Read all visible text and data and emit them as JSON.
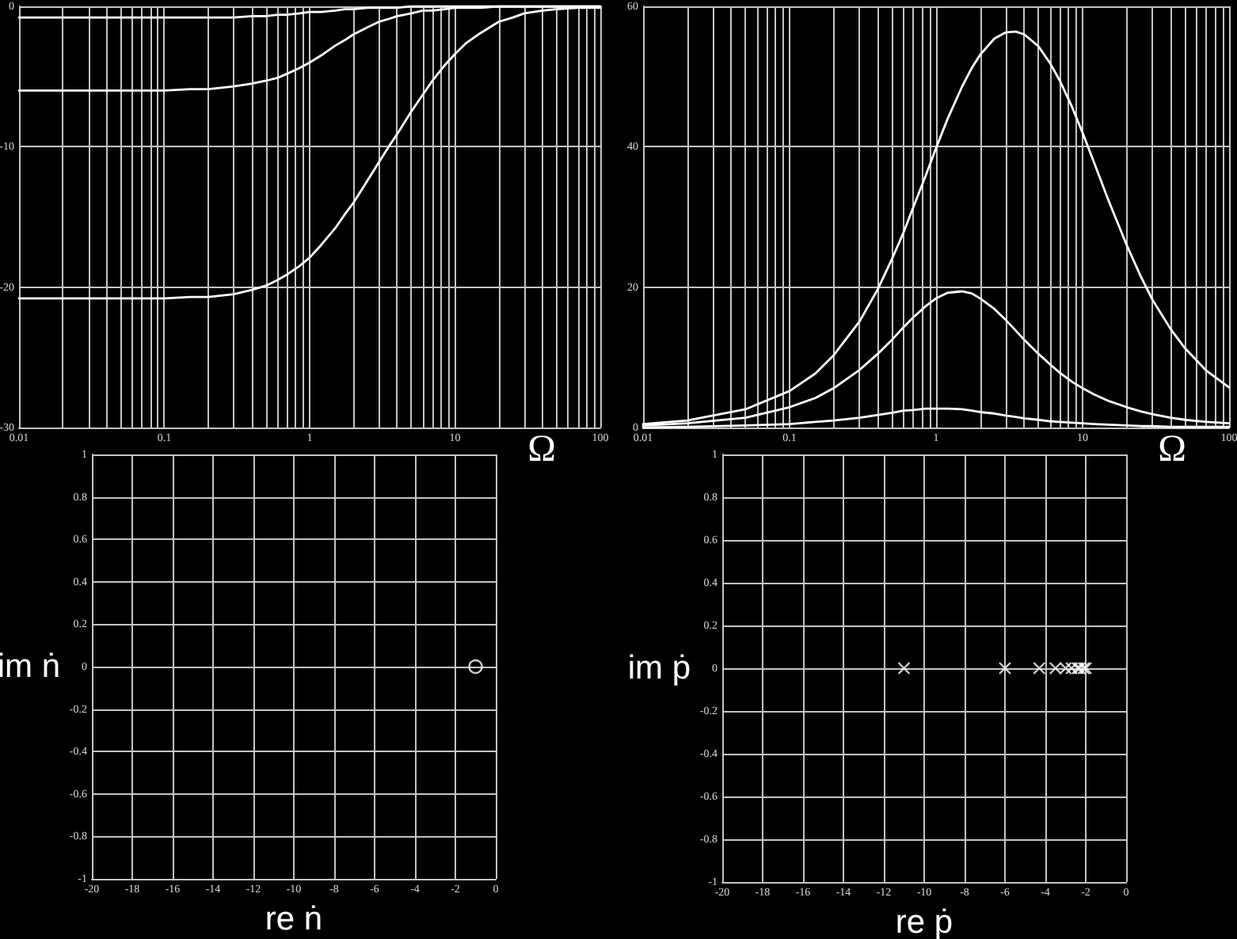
{
  "chart_data": [
    {
      "type": "line",
      "x": [
        0.01,
        0.02,
        0.05,
        0.1,
        0.15,
        0.2,
        0.3,
        0.4,
        0.5,
        0.6,
        0.7,
        0.85,
        1,
        1.2,
        1.5,
        1.75,
        2,
        2.5,
        3,
        3.5,
        4,
        5,
        6,
        7,
        8.5,
        10,
        12,
        15,
        20,
        25,
        30,
        40,
        50,
        70,
        100
      ],
      "series": [
        {
          "color": "#ffffff",
          "values": [
            -0.8,
            -0.8,
            -0.8,
            -0.8,
            -0.8,
            -0.8,
            -0.8,
            -0.7,
            -0.7,
            -0.6,
            -0.6,
            -0.5,
            -0.4,
            -0.4,
            -0.3,
            -0.2,
            -0.2,
            -0.1,
            -0.1,
            -0.1,
            -0.1,
            0,
            0,
            0,
            0,
            0,
            0,
            0,
            0,
            0,
            0,
            0,
            0,
            0,
            0
          ]
        },
        {
          "color": "#ffffff",
          "values": [
            -6.0,
            -6.0,
            -6.0,
            -6.0,
            -5.9,
            -5.9,
            -5.7,
            -5.5,
            -5.3,
            -5.1,
            -4.8,
            -4.4,
            -4.0,
            -3.5,
            -2.8,
            -2.4,
            -2.0,
            -1.5,
            -1.1,
            -0.9,
            -0.7,
            -0.5,
            -0.3,
            -0.3,
            -0.2,
            -0.1,
            -0.1,
            -0.1,
            0,
            0,
            0,
            0,
            0,
            0,
            0
          ]
        },
        {
          "color": "#ffffff",
          "values": [
            -20.8,
            -20.8,
            -20.8,
            -20.8,
            -20.7,
            -20.7,
            -20.5,
            -20.2,
            -19.9,
            -19.5,
            -19.1,
            -18.5,
            -17.9,
            -17.0,
            -15.8,
            -14.8,
            -14.0,
            -12.4,
            -11.1,
            -10.0,
            -9.1,
            -7.5,
            -6.3,
            -5.3,
            -4.2,
            -3.4,
            -2.6,
            -1.9,
            -1.1,
            -0.8,
            -0.5,
            -0.3,
            -0.2,
            -0.1,
            -0.1
          ]
        }
      ],
      "xlabel": "Ω",
      "xlim": [
        0.01,
        100
      ],
      "xticks": [
        0.01,
        {
          "value": 0.02,
          "label": null
        },
        {
          "value": 0.03,
          "label": null
        },
        {
          "value": 0.04,
          "label": null
        },
        {
          "value": 0.05,
          "label": null
        },
        {
          "value": 0.06,
          "label": null
        },
        {
          "value": 0.07,
          "label": null
        },
        {
          "value": 0.08,
          "label": null
        },
        {
          "value": 0.09,
          "label": null
        },
        0.1,
        {
          "value": 0.2,
          "label": null
        },
        {
          "value": 0.3,
          "label": null
        },
        {
          "value": 0.4,
          "label": null
        },
        {
          "value": 0.5,
          "label": null
        },
        {
          "value": 0.6,
          "label": null
        },
        {
          "value": 0.7,
          "label": null
        },
        {
          "value": 0.8,
          "label": null
        },
        {
          "value": 0.9,
          "label": null
        },
        1,
        {
          "value": 2,
          "label": null
        },
        {
          "value": 3,
          "label": null
        },
        {
          "value": 4,
          "label": null
        },
        {
          "value": 5,
          "label": null
        },
        {
          "value": 6,
          "label": null
        },
        {
          "value": 7,
          "label": null
        },
        {
          "value": 8,
          "label": null
        },
        {
          "value": 9,
          "label": null
        },
        10,
        {
          "value": 20,
          "label": null
        },
        {
          "value": 30,
          "label": null
        },
        {
          "value": 40,
          "label": null
        },
        {
          "value": 50,
          "label": null
        },
        {
          "value": 60,
          "label": null
        },
        {
          "value": 70,
          "label": null
        },
        {
          "value": 80,
          "label": null
        },
        {
          "value": 90,
          "label": null
        },
        100
      ],
      "ylim": [
        -30,
        0
      ],
      "yticks": [
        -30,
        -20,
        -10,
        0
      ],
      "log": "x",
      "grid": true,
      "marker": "none"
    },
    {
      "type": "line",
      "x": [
        0.01,
        0.02,
        0.05,
        0.1,
        0.15,
        0.2,
        0.3,
        0.4,
        0.5,
        0.6,
        0.7,
        0.85,
        1,
        1.2,
        1.5,
        1.75,
        2,
        2.5,
        3,
        3.5,
        4,
        5,
        6,
        7,
        8.5,
        10,
        12,
        15,
        20,
        25,
        30,
        40,
        50,
        70,
        100
      ],
      "series": [
        {
          "color": "#ffffff",
          "values": [
            0.0,
            0.1,
            0.3,
            0.5,
            0.8,
            1.0,
            1.4,
            1.8,
            2.1,
            2.4,
            2.5,
            2.7,
            2.7,
            2.7,
            2.6,
            2.4,
            2.2,
            2.0,
            1.7,
            1.5,
            1.3,
            1.1,
            0.9,
            0.8,
            0.7,
            0.6,
            0.5,
            0.4,
            0.3,
            0.2,
            0.2,
            0.1,
            0.1,
            0.1,
            0.1
          ]
        },
        {
          "color": "#ffffff",
          "values": [
            0.3,
            0.6,
            1.4,
            2.9,
            4.2,
            5.6,
            8.2,
            10.5,
            12.5,
            14.3,
            15.7,
            17.3,
            18.4,
            19.2,
            19.4,
            19.1,
            18.4,
            16.9,
            15.3,
            13.8,
            12.5,
            10.5,
            9.0,
            7.8,
            6.5,
            5.6,
            4.7,
            3.8,
            2.9,
            2.3,
            1.9,
            1.4,
            1.1,
            0.8,
            0.6
          ]
        },
        {
          "color": "#ffffff",
          "values": [
            0.5,
            1.0,
            2.6,
            5.2,
            7.7,
            10.3,
            15.1,
            19.7,
            24.0,
            27.8,
            31.4,
            35.9,
            39.8,
            44.0,
            48.5,
            51.2,
            53.1,
            55.4,
            56.3,
            56.4,
            56.0,
            54.3,
            51.9,
            49.4,
            45.6,
            42.0,
            37.7,
            32.4,
            26.0,
            21.5,
            18.2,
            14.0,
            11.3,
            8.1,
            5.7
          ]
        }
      ],
      "xlabel": "Ω",
      "xlim": [
        0.01,
        100
      ],
      "xticks": [
        0.01,
        {
          "value": 0.02,
          "label": null
        },
        {
          "value": 0.03,
          "label": null
        },
        {
          "value": 0.04,
          "label": null
        },
        {
          "value": 0.05,
          "label": null
        },
        {
          "value": 0.06,
          "label": null
        },
        {
          "value": 0.07,
          "label": null
        },
        {
          "value": 0.08,
          "label": null
        },
        {
          "value": 0.09,
          "label": null
        },
        0.1,
        {
          "value": 0.2,
          "label": null
        },
        {
          "value": 0.3,
          "label": null
        },
        {
          "value": 0.4,
          "label": null
        },
        {
          "value": 0.5,
          "label": null
        },
        {
          "value": 0.6,
          "label": null
        },
        {
          "value": 0.7,
          "label": null
        },
        {
          "value": 0.8,
          "label": null
        },
        {
          "value": 0.9,
          "label": null
        },
        1,
        {
          "value": 2,
          "label": null
        },
        {
          "value": 3,
          "label": null
        },
        {
          "value": 4,
          "label": null
        },
        {
          "value": 5,
          "label": null
        },
        {
          "value": 6,
          "label": null
        },
        {
          "value": 7,
          "label": null
        },
        {
          "value": 8,
          "label": null
        },
        {
          "value": 9,
          "label": null
        },
        10,
        {
          "value": 20,
          "label": null
        },
        {
          "value": 30,
          "label": null
        },
        {
          "value": 40,
          "label": null
        },
        {
          "value": 50,
          "label": null
        },
        {
          "value": 60,
          "label": null
        },
        {
          "value": 70,
          "label": null
        },
        {
          "value": 80,
          "label": null
        },
        {
          "value": 90,
          "label": null
        },
        100
      ],
      "ylim": [
        0,
        60
      ],
      "yticks": [
        0,
        20,
        40,
        60
      ],
      "log": "x",
      "grid": true,
      "marker": "none"
    },
    {
      "type": "scatter",
      "x": [
        -1
      ],
      "values": [
        0
      ],
      "color": "#ffffff",
      "xlabel": "re ṅ",
      "ylabel": "im ṅ",
      "xlim": [
        -20,
        0
      ],
      "xticks": [
        -20,
        -18,
        -16,
        -14,
        -12,
        -10,
        -8,
        -6,
        -4,
        -2,
        0
      ],
      "ylim": [
        -1,
        1
      ],
      "yticks": [
        -1,
        -0.8,
        -0.6,
        -0.4,
        -0.2,
        0,
        0.2,
        0.4,
        0.6,
        0.8,
        1
      ],
      "grid": true,
      "marker": "circle"
    },
    {
      "type": "scatter",
      "x": [
        -11,
        -6,
        -4.3,
        -3.5,
        -3,
        -2.7,
        -2.4,
        -2.3,
        -2.1,
        -2
      ],
      "values": [
        0,
        0,
        0,
        0,
        0,
        0,
        0,
        0,
        0,
        0
      ],
      "color": "#ffffff",
      "xlabel": "re ṗ",
      "ylabel": "im ṗ",
      "xlim": [
        -20,
        0
      ],
      "xticks": [
        -20,
        -18,
        -16,
        -14,
        -12,
        -10,
        -8,
        -6,
        -4,
        -2,
        0
      ],
      "ylim": [
        -1,
        1
      ],
      "yticks": [
        -1,
        -0.8,
        -0.6,
        -0.4,
        -0.2,
        0,
        0.2,
        0.4,
        0.6,
        0.8,
        1
      ],
      "grid": true,
      "marker": "cross"
    }
  ]
}
